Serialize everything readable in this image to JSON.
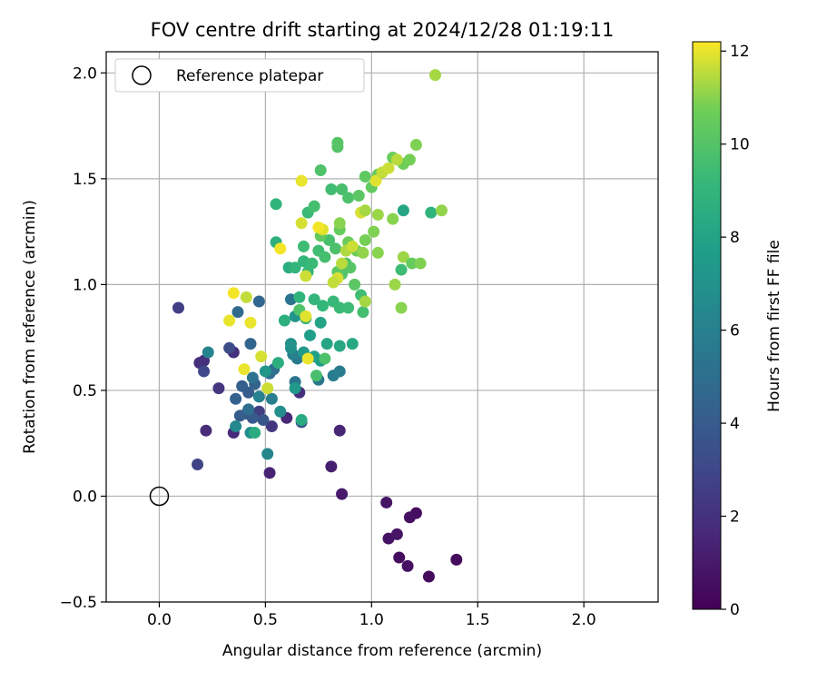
{
  "chart_data": {
    "type": "scatter",
    "title": "FOV centre drift starting at 2024/12/28 01:19:11",
    "xlabel": "Angular distance from reference (arcmin)",
    "ylabel": "Rotation from reference (arcmin)",
    "xlim": [
      -0.25,
      2.35
    ],
    "ylim": [
      -0.5,
      2.1
    ],
    "xticks": [
      "0.0",
      "0.5",
      "1.0",
      "1.5",
      "2.0"
    ],
    "yticks": [
      "−0.5",
      "0.0",
      "0.5",
      "1.0",
      "1.5",
      "2.0"
    ],
    "grid": true,
    "legend": {
      "placement": "top-left",
      "label": "Reference platepar"
    },
    "reference_point": {
      "x": 0.0,
      "y": 0.0
    },
    "colorbar": {
      "label": "Hours from first FF file",
      "range": [
        0,
        12.2
      ],
      "ticks": [
        "0",
        "2",
        "4",
        "6",
        "8",
        "10",
        "12"
      ],
      "colormap": "viridis"
    },
    "points": [
      [
        1.27,
        -0.38,
        0.4
      ],
      [
        1.4,
        -0.3,
        0.4
      ],
      [
        1.13,
        -0.29,
        0.5
      ],
      [
        1.17,
        -0.33,
        0.6
      ],
      [
        1.21,
        -0.08,
        0.5
      ],
      [
        1.18,
        -0.1,
        0.6
      ],
      [
        1.08,
        -0.2,
        0.7
      ],
      [
        1.12,
        -0.18,
        0.8
      ],
      [
        1.07,
        -0.03,
        0.8
      ],
      [
        0.86,
        0.01,
        1.0
      ],
      [
        0.81,
        0.14,
        1.2
      ],
      [
        0.52,
        0.11,
        1.4
      ],
      [
        0.85,
        0.31,
        1.5
      ],
      [
        0.6,
        0.37,
        1.6
      ],
      [
        0.35,
        0.3,
        1.7
      ],
      [
        0.22,
        0.31,
        1.8
      ],
      [
        0.19,
        0.63,
        1.9
      ],
      [
        0.21,
        0.64,
        2.0
      ],
      [
        0.09,
        0.89,
        2.6
      ],
      [
        0.18,
        0.15,
        2.8
      ],
      [
        0.28,
        0.51,
        2.2
      ],
      [
        0.66,
        0.49,
        1.9
      ],
      [
        0.35,
        0.68,
        2.0
      ],
      [
        0.21,
        0.59,
        3.0
      ],
      [
        0.33,
        0.7,
        3.2
      ],
      [
        0.47,
        0.4,
        2.5
      ],
      [
        0.53,
        0.33,
        2.3
      ],
      [
        0.67,
        0.35,
        3.5
      ],
      [
        0.41,
        0.39,
        3.8
      ],
      [
        0.38,
        0.38,
        4.1
      ],
      [
        0.44,
        0.37,
        3.9
      ],
      [
        0.49,
        0.36,
        3.7
      ],
      [
        0.39,
        0.52,
        4.2
      ],
      [
        0.42,
        0.49,
        4.0
      ],
      [
        0.45,
        0.53,
        4.4
      ],
      [
        0.43,
        0.72,
        4.5
      ],
      [
        0.47,
        0.92,
        4.6
      ],
      [
        0.37,
        0.87,
        4.8
      ],
      [
        0.36,
        0.46,
        4.3
      ],
      [
        0.52,
        0.58,
        4.9
      ],
      [
        0.42,
        0.41,
        5.0
      ],
      [
        0.54,
        0.6,
        5.1
      ],
      [
        0.44,
        0.56,
        5.2
      ],
      [
        0.62,
        0.93,
        5.3
      ],
      [
        0.64,
        0.54,
        5.4
      ],
      [
        0.65,
        0.65,
        5.6
      ],
      [
        0.75,
        0.55,
        5.5
      ],
      [
        0.85,
        0.59,
        5.7
      ],
      [
        0.82,
        0.57,
        5.8
      ],
      [
        0.53,
        0.46,
        5.9
      ],
      [
        0.63,
        0.67,
        6.0
      ],
      [
        0.47,
        0.47,
        6.1
      ],
      [
        0.23,
        0.68,
        6.2
      ],
      [
        0.51,
        0.2,
        6.4
      ],
      [
        0.43,
        0.3,
        6.7
      ],
      [
        0.36,
        0.33,
        6.5
      ],
      [
        0.57,
        0.4,
        6.8
      ],
      [
        0.62,
        0.7,
        6.9
      ],
      [
        0.62,
        0.72,
        7.0
      ],
      [
        0.64,
        0.85,
        7.2
      ],
      [
        0.5,
        0.59,
        7.3
      ],
      [
        0.64,
        0.51,
        7.4
      ],
      [
        0.68,
        0.68,
        7.5
      ],
      [
        0.76,
        0.64,
        7.6
      ],
      [
        0.71,
        0.76,
        7.7
      ],
      [
        0.73,
        0.66,
        7.8
      ],
      [
        0.76,
        0.82,
        8.0
      ],
      [
        0.79,
        0.72,
        8.1
      ],
      [
        0.85,
        0.71,
        8.2
      ],
      [
        0.91,
        0.72,
        8.3
      ],
      [
        0.67,
        0.36,
        8.4
      ],
      [
        0.45,
        0.3,
        8.5
      ],
      [
        0.56,
        0.63,
        8.6
      ],
      [
        0.59,
        0.83,
        8.7
      ],
      [
        0.69,
        0.84,
        8.8
      ],
      [
        0.66,
        0.94,
        8.9
      ],
      [
        0.73,
        0.93,
        9.0
      ],
      [
        0.77,
        0.9,
        9.1
      ],
      [
        0.82,
        0.92,
        9.2
      ],
      [
        0.85,
        0.89,
        9.3
      ],
      [
        0.89,
        0.89,
        9.4
      ],
      [
        0.95,
        0.95,
        9.5
      ],
      [
        0.96,
        0.87,
        9.6
      ],
      [
        0.74,
        0.57,
        9.7
      ],
      [
        0.78,
        0.65,
        9.8
      ],
      [
        0.66,
        0.88,
        9.9
      ],
      [
        0.61,
        1.08,
        8.5
      ],
      [
        0.55,
        1.2,
        8.7
      ],
      [
        0.55,
        1.38,
        8.9
      ],
      [
        0.64,
        1.08,
        9.0
      ],
      [
        0.68,
        1.11,
        9.1
      ],
      [
        0.7,
        1.06,
        9.2
      ],
      [
        0.72,
        1.1,
        9.3
      ],
      [
        0.68,
        1.18,
        9.4
      ],
      [
        0.75,
        1.16,
        9.5
      ],
      [
        0.78,
        1.13,
        9.6
      ],
      [
        0.8,
        1.21,
        9.7
      ],
      [
        0.83,
        1.17,
        9.8
      ],
      [
        0.86,
        1.05,
        9.9
      ],
      [
        0.88,
        1.1,
        10.0
      ],
      [
        0.9,
        1.08,
        10.1
      ],
      [
        0.92,
        1.0,
        10.2
      ],
      [
        0.84,
        1.06,
        10.3
      ],
      [
        0.76,
        1.23,
        10.4
      ],
      [
        0.85,
        1.26,
        10.5
      ],
      [
        0.89,
        1.2,
        10.6
      ],
      [
        0.93,
        1.16,
        10.7
      ],
      [
        0.97,
        1.21,
        10.8
      ],
      [
        1.01,
        1.25,
        10.9
      ],
      [
        1.03,
        1.15,
        11.0
      ],
      [
        0.7,
        1.34,
        9.3
      ],
      [
        0.73,
        1.37,
        9.6
      ],
      [
        0.81,
        1.45,
        9.5
      ],
      [
        0.86,
        1.45,
        9.7
      ],
      [
        0.89,
        1.41,
        9.8
      ],
      [
        0.76,
        1.54,
        9.9
      ],
      [
        0.84,
        1.65,
        10.0
      ],
      [
        0.84,
        1.67,
        10.1
      ],
      [
        0.94,
        1.42,
        10.2
      ],
      [
        0.97,
        1.51,
        10.3
      ],
      [
        1.0,
        1.46,
        10.4
      ],
      [
        1.03,
        1.52,
        10.5
      ],
      [
        1.1,
        1.6,
        10.6
      ],
      [
        1.15,
        1.57,
        10.7
      ],
      [
        1.18,
        1.59,
        10.8
      ],
      [
        1.21,
        1.66,
        10.9
      ],
      [
        1.1,
        1.31,
        11.0
      ],
      [
        1.15,
        1.35,
        8.1
      ],
      [
        1.28,
        1.34,
        8.9
      ],
      [
        1.33,
        1.35,
        11.1
      ],
      [
        1.15,
        1.13,
        11.2
      ],
      [
        1.14,
        1.07,
        9.4
      ],
      [
        1.19,
        1.1,
        10.5
      ],
      [
        1.23,
        1.1,
        10.9
      ],
      [
        1.11,
        1.0,
        11.2
      ],
      [
        1.14,
        0.89,
        11.0
      ],
      [
        1.3,
        1.99,
        11.3
      ],
      [
        0.67,
        1.49,
        12.0
      ],
      [
        0.67,
        1.29,
        11.8
      ],
      [
        0.57,
        1.17,
        12.1
      ],
      [
        0.69,
        1.04,
        11.7
      ],
      [
        0.77,
        1.26,
        11.9
      ],
      [
        0.75,
        1.27,
        12.1
      ],
      [
        0.84,
        1.03,
        11.8
      ],
      [
        0.82,
        1.01,
        11.6
      ],
      [
        0.86,
        1.1,
        11.5
      ],
      [
        0.88,
        1.16,
        11.4
      ],
      [
        0.91,
        1.18,
        11.7
      ],
      [
        0.95,
        1.34,
        11.8
      ],
      [
        0.97,
        1.35,
        11.3
      ],
      [
        1.02,
        1.49,
        11.9
      ],
      [
        1.05,
        1.53,
        11.6
      ],
      [
        1.08,
        1.55,
        11.7
      ],
      [
        1.12,
        1.59,
        11.5
      ],
      [
        0.97,
        0.92,
        11.3
      ],
      [
        0.35,
        0.96,
        12.1
      ],
      [
        0.33,
        0.83,
        12.0
      ],
      [
        0.41,
        0.94,
        11.6
      ],
      [
        0.43,
        0.82,
        12.0
      ],
      [
        0.48,
        0.66,
        11.8
      ],
      [
        0.4,
        0.6,
        12.0
      ],
      [
        0.51,
        0.51,
        11.7
      ],
      [
        0.69,
        0.85,
        11.9
      ],
      [
        0.7,
        0.65,
        12.0
      ],
      [
        0.85,
        1.29,
        11.0
      ],
      [
        0.96,
        1.15,
        11.1
      ],
      [
        1.03,
        1.33,
        11.2
      ]
    ]
  }
}
